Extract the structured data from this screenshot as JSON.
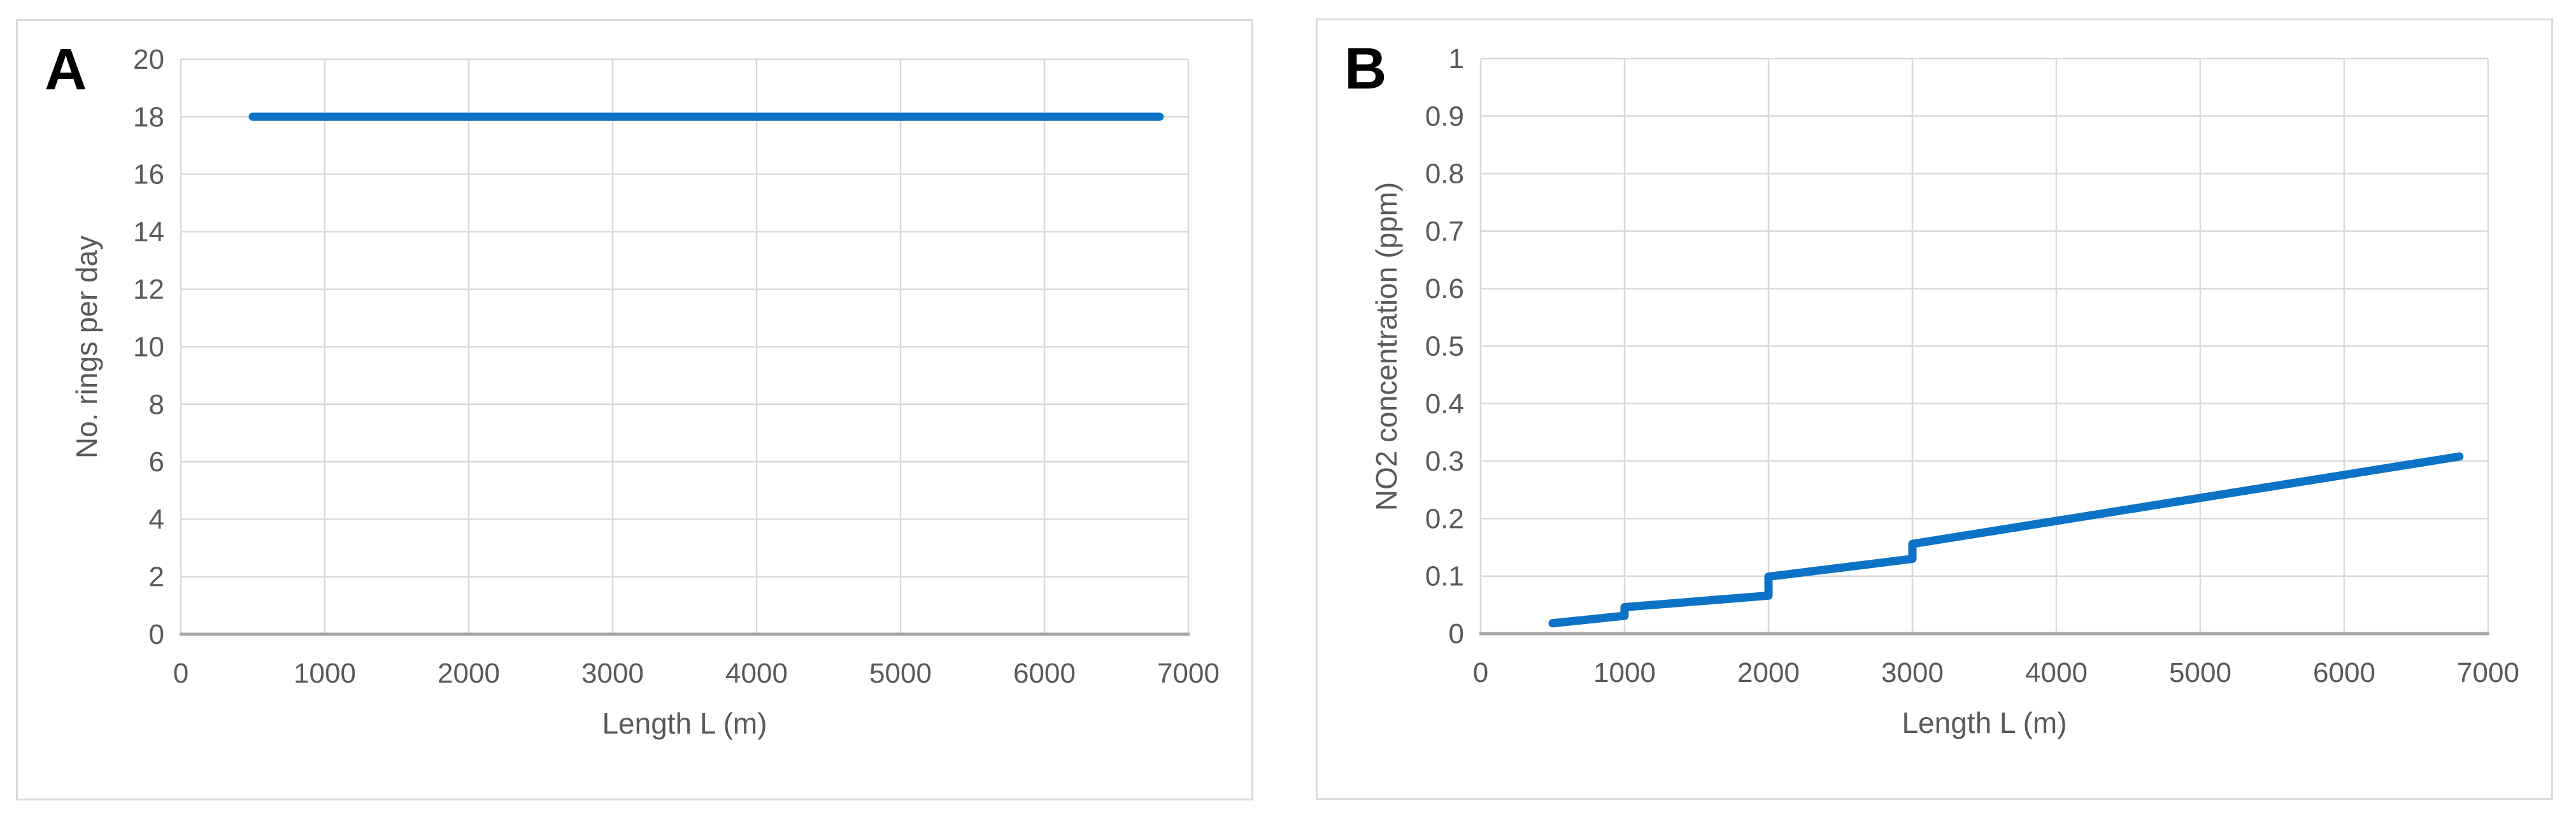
{
  "figure": {
    "background": "#ffffff",
    "panel_border_color": "#dbdbdb"
  },
  "chart_data": [
    {
      "type": "line",
      "panel_label": "A",
      "title": "",
      "xlabel": "Length L (m)",
      "ylabel": "No. rings per day",
      "xlim": [
        0,
        7000
      ],
      "ylim": [
        0,
        20
      ],
      "x_ticks": [
        0,
        1000,
        2000,
        3000,
        4000,
        5000,
        6000,
        7000
      ],
      "y_ticks": [
        0,
        2,
        4,
        6,
        8,
        10,
        12,
        14,
        16,
        18,
        20
      ],
      "grid": true,
      "legend": "none",
      "line_color": "#0c72c6",
      "gridline_color": "#d9d9d9",
      "axis_line_color": "#a6a6a6",
      "tick_label_color": "#595959",
      "series": [
        {
          "name": "No. rings per day",
          "points": [
            [
              500,
              18
            ],
            [
              6800,
              18
            ]
          ]
        }
      ]
    },
    {
      "type": "line",
      "panel_label": "B",
      "title": "",
      "xlabel": "Length L (m)",
      "ylabel": "NO2 concentration (ppm)",
      "xlim": [
        0,
        7000
      ],
      "ylim": [
        0,
        1
      ],
      "x_ticks": [
        0,
        1000,
        2000,
        3000,
        4000,
        5000,
        6000,
        7000
      ],
      "y_ticks": [
        0,
        0.1,
        0.2,
        0.3,
        0.4,
        0.5,
        0.6,
        0.7,
        0.8,
        0.9,
        1
      ],
      "grid": true,
      "legend": "none",
      "line_color": "#0c72c6",
      "gridline_color": "#d9d9d9",
      "axis_line_color": "#a6a6a6",
      "tick_label_color": "#595959",
      "series": [
        {
          "name": "NO2 concentration (ppm)",
          "points": [
            [
              500,
              0.018
            ],
            [
              1000,
              0.031
            ],
            [
              1000,
              0.046
            ],
            [
              2000,
              0.066
            ],
            [
              2000,
              0.099
            ],
            [
              3000,
              0.13
            ],
            [
              3000,
              0.156
            ],
            [
              6800,
              0.308
            ]
          ]
        }
      ]
    }
  ]
}
